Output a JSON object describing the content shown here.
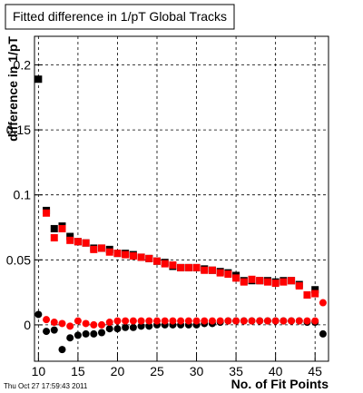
{
  "chart_data": {
    "type": "scatter",
    "title": "Fitted difference in 1/pT  Global Tracks",
    "x_label": "No. of Fit Points",
    "y_label": "difference in 1/pT",
    "timestamp": "Thu Oct 27 17:59:43 2011",
    "x": [
      10,
      11,
      12,
      13,
      14,
      15,
      16,
      17,
      18,
      19,
      20,
      21,
      22,
      23,
      24,
      25,
      26,
      27,
      28,
      29,
      30,
      31,
      32,
      33,
      34,
      35,
      36,
      37,
      38,
      39,
      40,
      41,
      42,
      43,
      44,
      45,
      46
    ],
    "series": [
      {
        "color": "#000000",
        "marker": "square",
        "values": [
          0.189,
          0.088,
          0.074,
          0.076,
          0.068,
          0.064,
          0.063,
          0.059,
          0.059,
          0.058,
          0.055,
          0.055,
          0.054,
          0.052,
          0.051,
          0.049,
          0.048,
          0.045,
          0.044,
          0.044,
          0.044,
          0.043,
          0.042,
          0.041,
          0.04,
          0.038,
          0.034,
          0.034,
          0.034,
          0.034,
          0.033,
          0.034,
          0.034,
          0.031,
          0.023,
          0.027,
          null
        ]
      },
      {
        "color": "#ff0000",
        "marker": "square",
        "values": [
          null,
          0.086,
          0.067,
          0.074,
          0.065,
          0.064,
          0.063,
          0.058,
          0.059,
          0.056,
          0.055,
          0.054,
          0.053,
          0.052,
          0.051,
          0.049,
          0.047,
          0.046,
          0.044,
          0.044,
          0.044,
          0.042,
          0.042,
          0.04,
          0.039,
          0.036,
          0.033,
          0.035,
          0.034,
          0.033,
          0.032,
          0.033,
          0.034,
          0.03,
          0.023,
          0.024,
          null
        ]
      },
      {
        "color": "#000000",
        "marker": "circle",
        "values": [
          0.008,
          -0.005,
          -0.004,
          -0.019,
          -0.01,
          -0.008,
          -0.007,
          -0.007,
          -0.006,
          -0.003,
          -0.003,
          -0.002,
          -0.002,
          -0.001,
          -0.001,
          0,
          0,
          0,
          0,
          0,
          0,
          0.001,
          0.001,
          0.002,
          0.003,
          0.003,
          0.003,
          0.003,
          0.003,
          0.003,
          0.003,
          0.003,
          0.003,
          0.003,
          0.002,
          0.002,
          -0.007
        ]
      },
      {
        "color": "#ff0000",
        "marker": "circle",
        "values": [
          null,
          0.004,
          0.002,
          0.001,
          -0.001,
          0.003,
          0.001,
          0,
          0,
          0.002,
          0.003,
          0.003,
          0.003,
          0.003,
          0.003,
          0.003,
          0.003,
          0.003,
          0.003,
          0.003,
          0.003,
          0.003,
          0.003,
          0.003,
          0.003,
          0.003,
          0.003,
          0.003,
          0.003,
          0.003,
          0.003,
          0.003,
          0.003,
          0.003,
          0.003,
          0.003,
          0.017
        ]
      }
    ],
    "xlim": [
      9.5,
      46.7
    ],
    "ylim": [
      -0.028,
      0.222
    ],
    "xticks": [
      10,
      15,
      20,
      25,
      30,
      35,
      40,
      45
    ],
    "yticks": [
      0,
      0.05,
      0.1,
      0.15,
      0.2
    ],
    "grid": true
  }
}
